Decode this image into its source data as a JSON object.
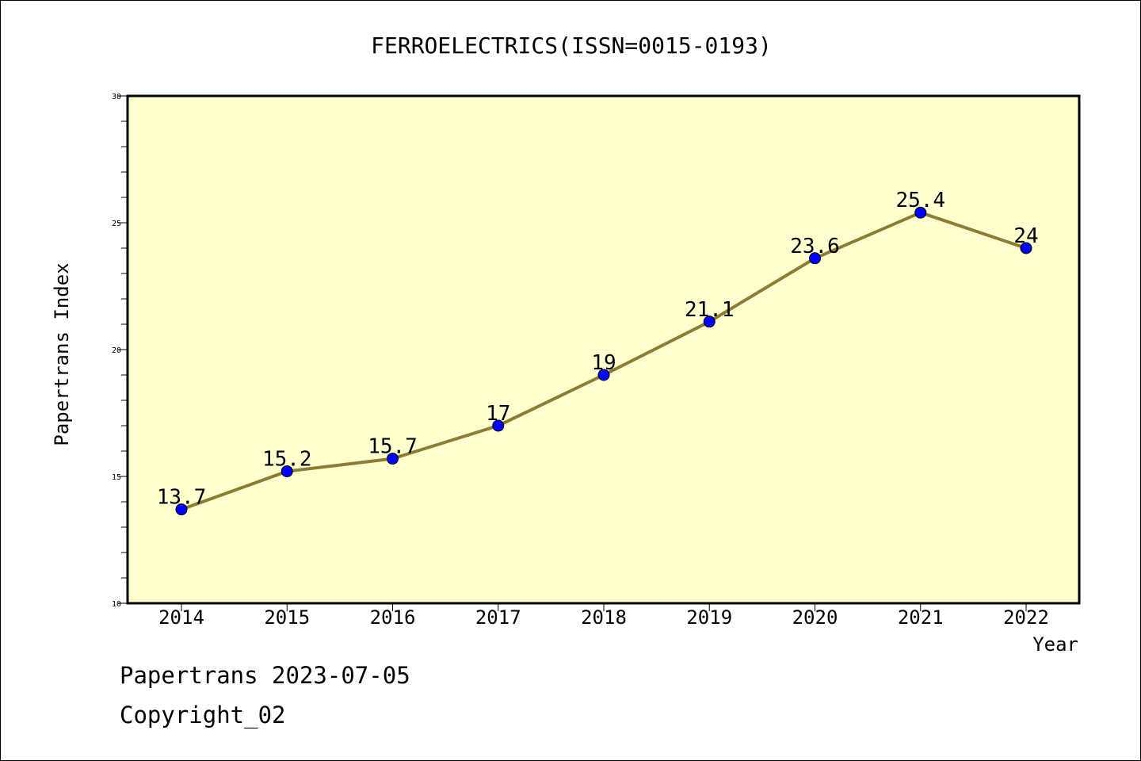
{
  "chart_data": {
    "type": "line",
    "title": "FERROELECTRICS(ISSN=0015-0193)",
    "xlabel": "Year",
    "ylabel": "Papertrans Index",
    "categories": [
      "2014",
      "2015",
      "2016",
      "2017",
      "2018",
      "2019",
      "2020",
      "2021",
      "2022"
    ],
    "values": [
      13.7,
      15.2,
      15.7,
      17,
      19,
      21.1,
      23.6,
      25.4,
      24
    ],
    "data_labels": [
      "13.7",
      "15.2",
      "15.7",
      "17",
      "19",
      "21.1",
      "23.6",
      "25.4",
      "24"
    ],
    "ylim": [
      10,
      30
    ],
    "y_ticks": [
      "10",
      "15",
      "20",
      "25",
      "30"
    ],
    "grid": false,
    "plot_background": "#ffffd0",
    "line_color": "#8b7d35",
    "marker_color": "#0000ff"
  },
  "footer": {
    "line1": "Papertrans 2023-07-05",
    "line2": "Copyright_02"
  }
}
